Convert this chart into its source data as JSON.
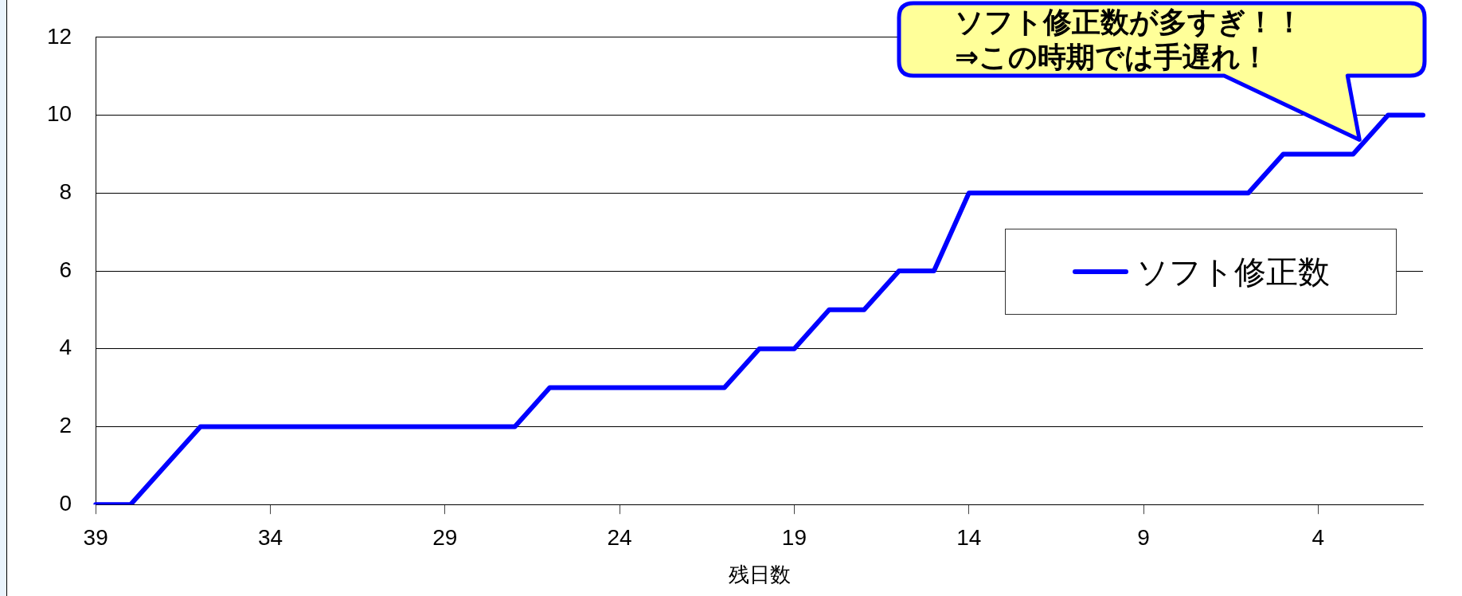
{
  "chart_data": {
    "type": "line",
    "xlabel": "残日数",
    "categories": [
      "39",
      null,
      null,
      null,
      null,
      "34",
      null,
      null,
      null,
      null,
      "29",
      null,
      null,
      null,
      null,
      "24",
      null,
      null,
      null,
      null,
      "19",
      null,
      null,
      null,
      null,
      "14",
      null,
      null,
      null,
      null,
      "9",
      null,
      null,
      null,
      null,
      "4",
      null,
      null,
      null
    ],
    "series": [
      {
        "name": "ソフト修正数",
        "color": "#0000ff",
        "values": [
          0,
          0,
          1,
          2,
          2,
          2,
          2,
          2,
          2,
          2,
          2,
          2,
          2,
          3,
          3,
          3,
          3,
          3,
          3,
          4,
          4,
          5,
          5,
          6,
          6,
          8,
          8,
          8,
          8,
          8,
          8,
          8,
          8,
          8,
          9,
          9,
          9,
          10,
          10
        ]
      }
    ],
    "ylim": [
      0,
      12
    ],
    "yticks": [
      0,
      2,
      4,
      6,
      8,
      10,
      12
    ],
    "grid": "y",
    "legend": "right",
    "marker": "none",
    "line_style": "solid",
    "annotations": [
      "ソフト修正数が多すぎ！！",
      "⇒この時期では手遅れ！"
    ]
  }
}
